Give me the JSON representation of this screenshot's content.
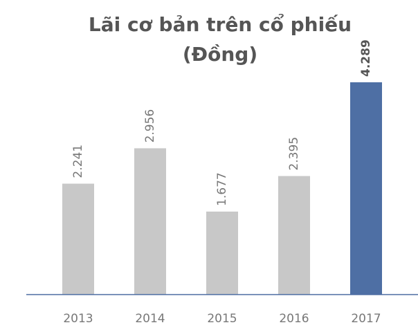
{
  "chart_data": {
    "type": "bar",
    "title": "Lãi cơ bản trên cổ phiếu",
    "subtitle": "(Đồng)",
    "categories": [
      "2013",
      "2014",
      "2015",
      "2016",
      "2017"
    ],
    "values": [
      2241,
      2956,
      1677,
      2395,
      4289
    ],
    "value_labels": [
      "2.241",
      "2.956",
      "1.677",
      "2.395",
      "4.289"
    ],
    "colors": [
      "#c8c8c8",
      "#c8c8c8",
      "#c8c8c8",
      "#c8c8c8",
      "#4e6fa4"
    ]
  }
}
